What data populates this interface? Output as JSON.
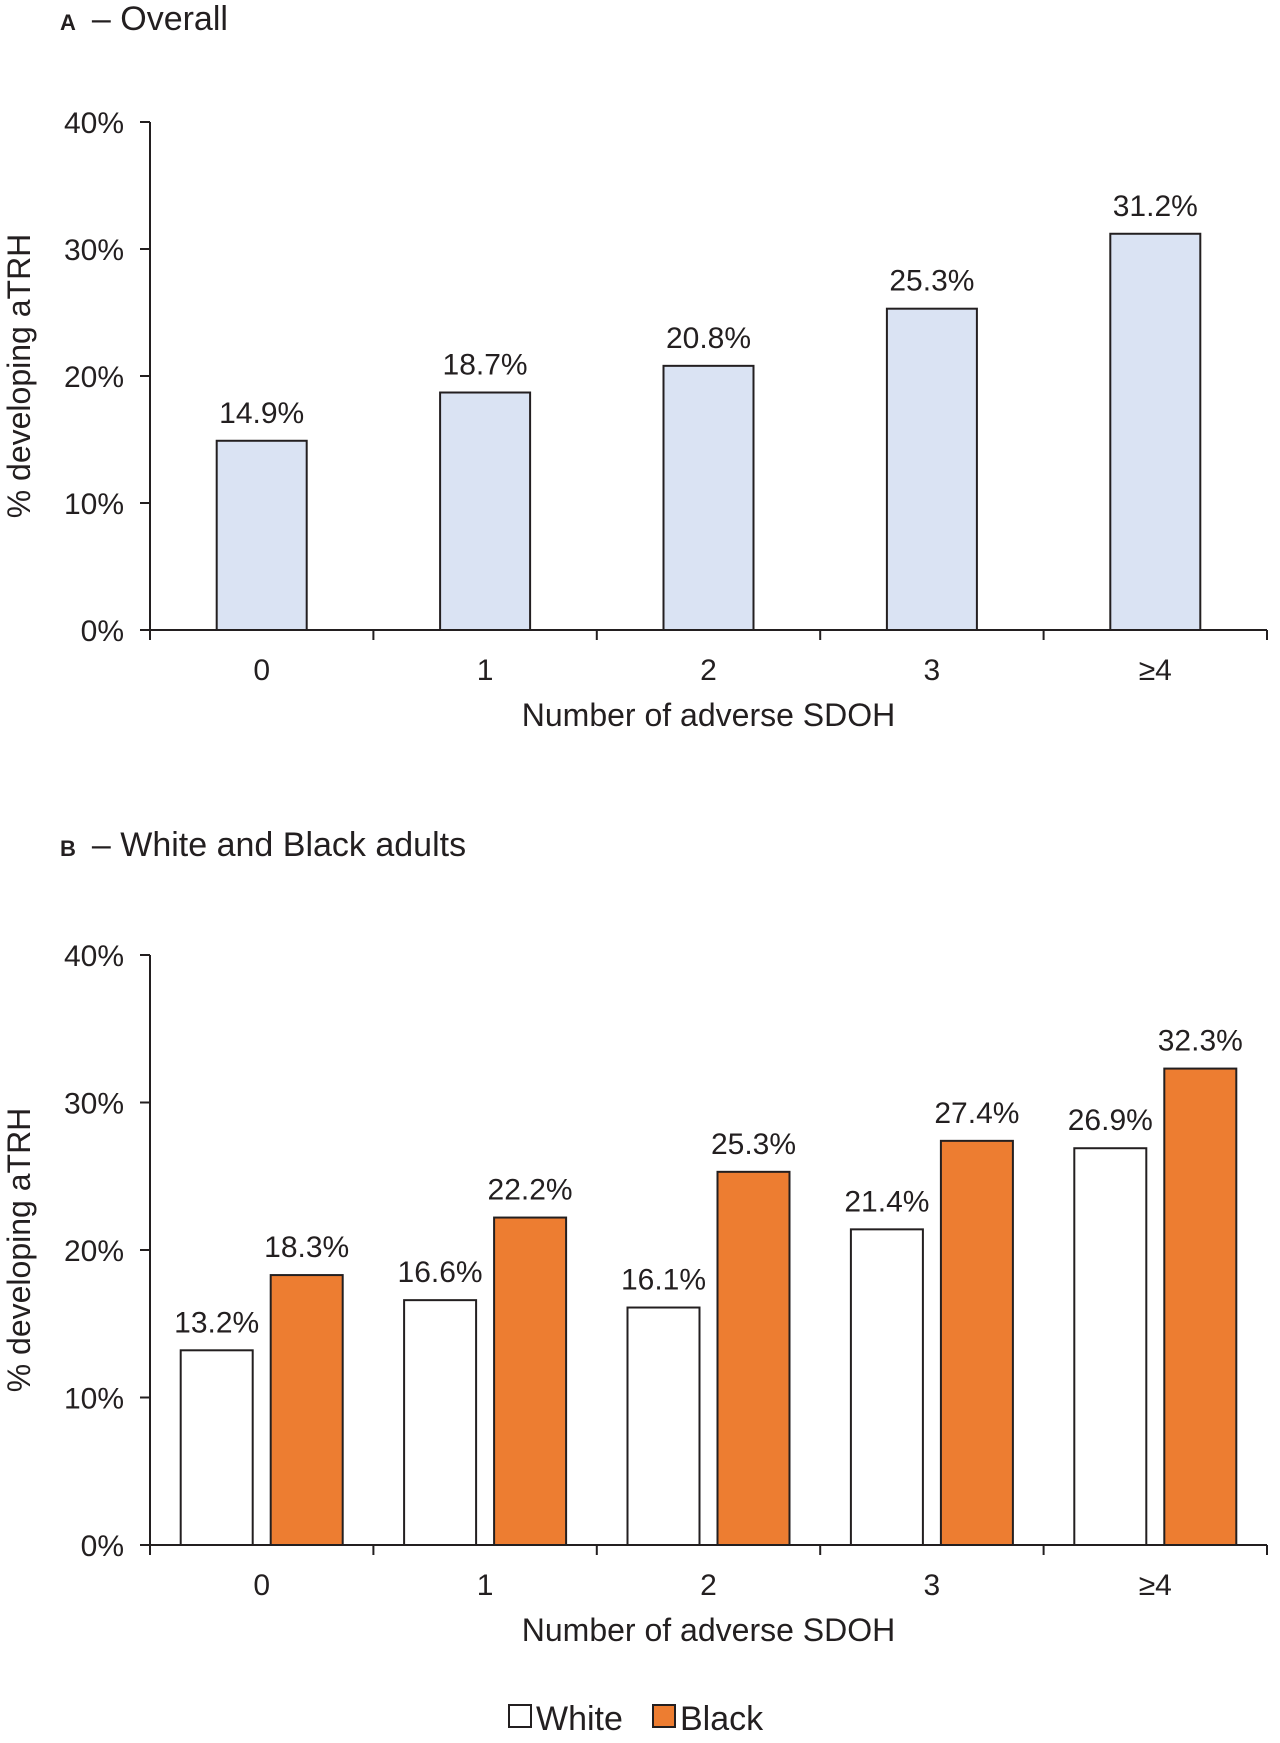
{
  "chart_data": [
    {
      "type": "bar",
      "panel_letter": "A",
      "title": "– Overall",
      "categories": [
        "0",
        "1",
        "2",
        "3",
        "≥4"
      ],
      "series": [
        {
          "name": "Overall",
          "values": [
            14.9,
            18.7,
            20.8,
            25.3,
            31.2
          ],
          "labels": [
            "14.9%",
            "18.7%",
            "20.8%",
            "25.3%",
            "31.2%"
          ],
          "color": "#dae3f3"
        }
      ],
      "xlabel": "Number of adverse SDOH",
      "ylabel": "% developing aTRH",
      "ylim": [
        0,
        40
      ],
      "yticks": [
        "0%",
        "10%",
        "20%",
        "30%",
        "40%"
      ],
      "grid": false
    },
    {
      "type": "bar",
      "panel_letter": "B",
      "title": "– White and Black adults",
      "categories": [
        "0",
        "1",
        "2",
        "3",
        "≥4"
      ],
      "series": [
        {
          "name": "White",
          "values": [
            13.2,
            16.6,
            16.1,
            21.4,
            26.9
          ],
          "labels": [
            "13.2%",
            "16.6%",
            "16.1%",
            "21.4%",
            "26.9%"
          ],
          "color": "#ffffff"
        },
        {
          "name": "Black",
          "values": [
            18.3,
            22.2,
            25.3,
            27.4,
            32.3
          ],
          "labels": [
            "18.3%",
            "22.2%",
            "25.3%",
            "27.4%",
            "32.3%"
          ],
          "color": "#ed7d31"
        }
      ],
      "xlabel": "Number of adverse SDOH",
      "ylabel": "% developing aTRH",
      "ylim": [
        0,
        40
      ],
      "yticks": [
        "0%",
        "10%",
        "20%",
        "30%",
        "40%"
      ],
      "grid": false,
      "legend": "bottom-center"
    }
  ]
}
